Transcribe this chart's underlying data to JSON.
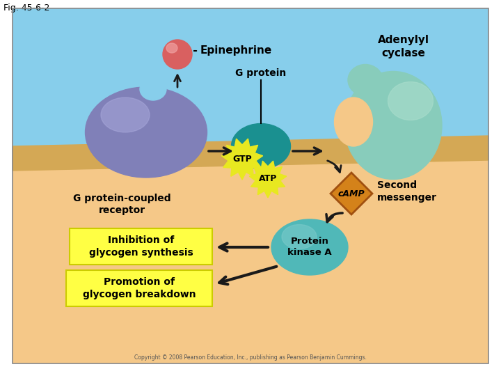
{
  "fig_label": "Fig. 45-6-2",
  "bg_sky": "#87CEEB",
  "bg_cell": "#F5C888",
  "membrane_color": "#D4A855",
  "epinephrine_label": "Epinephrine",
  "epinephrine_color": "#D96060",
  "epinephrine_highlight": "#EFA0A0",
  "g_protein_label": "G protein",
  "g_protein_color": "#1A9090",
  "g_protein_coupled_label": "G protein-coupled\nreceptor",
  "g_protein_coupled_color": "#8080B8",
  "adenylyl_cyclase_label": "Adenylyl\ncyclase",
  "adenylyl_cyclase_color": "#88CCBB",
  "adenylyl_cyclase_highlight": "#AADDCC",
  "gtp_label": "GTP",
  "gtp_color": "#E8E820",
  "atp_label": "ATP",
  "atp_color": "#E8E820",
  "camp_label": "cAMP",
  "camp_color": "#D4821A",
  "camp_border": "#A05010",
  "second_messenger_label": "Second\nmessenger",
  "protein_kinase_label": "Protein\nkinase A",
  "protein_kinase_color": "#50B8B8",
  "protein_kinase_highlight": "#80CCCC",
  "inhibition_label": "Inhibition of\nglycogen synthesis",
  "promotion_label": "Promotion of\nglycogen breakdown",
  "yellow_box_color": "#FFFF44",
  "yellow_box_edge": "#CCCC00",
  "arrow_color": "#1A1A1A",
  "copyright": "Copyright © 2008 Pearson Education, Inc., publishing as Pearson Benjamin Cummings."
}
